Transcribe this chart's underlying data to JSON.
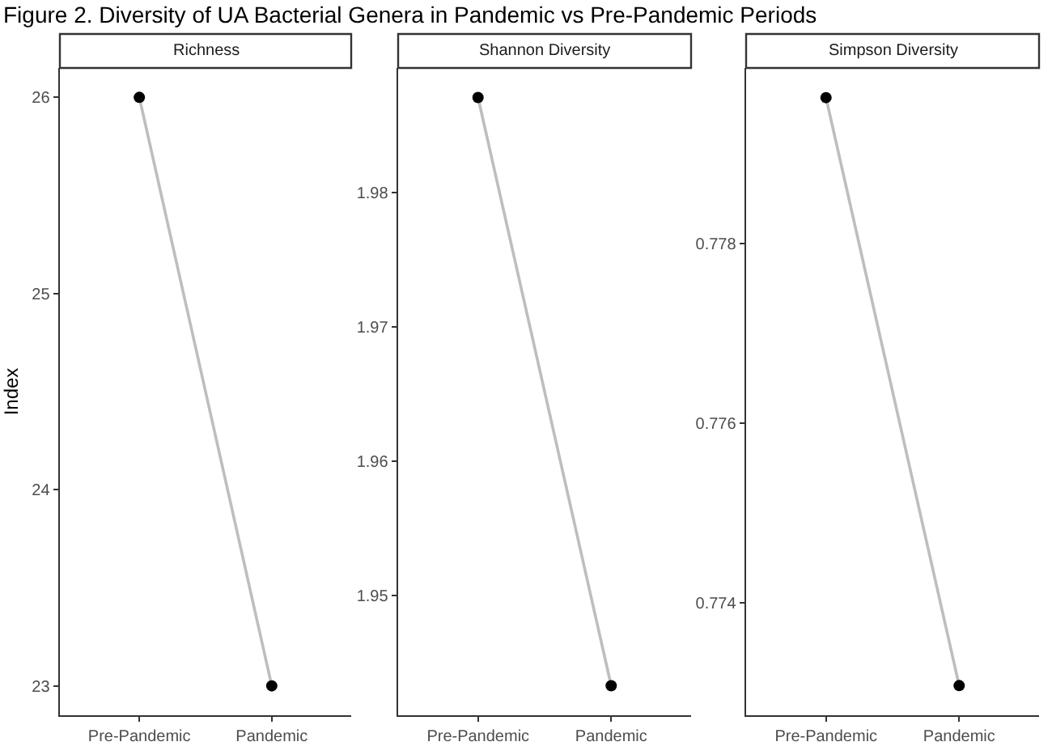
{
  "chart_data": [
    {
      "type": "line",
      "title": "Richness",
      "ylabel": "Index",
      "annotations": [
        "Figure 2. Diversity of UA Bacterial Genera in Pandemic vs Pre-Pandemic Periods"
      ],
      "categories": [
        "Pre-Pandemic",
        "Pandemic"
      ],
      "ylim": [
        22.85,
        26.15
      ],
      "yticks": [
        23,
        24,
        25,
        26
      ],
      "grid": false,
      "series": [
        {
          "color": "#bebebe",
          "values": [
            26,
            23
          ]
        },
        {
          "type": "scatter",
          "marker": "circle",
          "color": "#000000",
          "values": [
            26,
            23
          ]
        }
      ]
    },
    {
      "type": "line",
      "title": "Shannon Diversity",
      "categories": [
        "Pre-Pandemic",
        "Pandemic"
      ],
      "ylim": [
        1.9411,
        1.9893
      ],
      "yticks": [
        1.95,
        1.96,
        1.97,
        1.98
      ],
      "grid": false,
      "series": [
        {
          "color": "#bebebe",
          "values": [
            1.9871,
            1.9433
          ]
        },
        {
          "type": "scatter",
          "marker": "circle",
          "color": "#000000",
          "values": [
            1.9871,
            1.9433
          ]
        }
      ]
    },
    {
      "type": "line",
      "title": "Simpson Diversity",
      "categories": [
        "Pre-Pandemic",
        "Pandemic"
      ],
      "ylim": [
        0.77275,
        0.77995
      ],
      "yticks": [
        0.774,
        0.776,
        0.778
      ],
      "grid": false,
      "series": [
        {
          "color": "#bebebe",
          "values": [
            0.77962,
            0.77308
          ]
        },
        {
          "type": "scatter",
          "marker": "circle",
          "color": "#000000",
          "values": [
            0.77962,
            0.77308
          ]
        }
      ]
    }
  ]
}
